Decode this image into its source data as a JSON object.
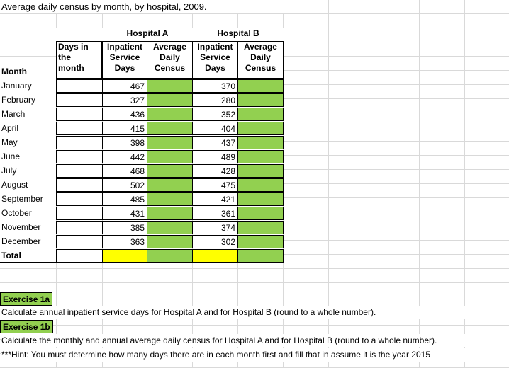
{
  "title": "Average daily census by month, by hospital, 2009.",
  "headers": {
    "hospital_a": "Hospital A",
    "hospital_b": "Hospital B",
    "days_in": "Days in",
    "the": "the",
    "month_lower": "month",
    "inpatient": "Inpatient",
    "service": "Service",
    "days": "Days",
    "average": "Average",
    "daily": "Daily",
    "census": "Census",
    "month": "Month"
  },
  "rows": [
    {
      "month": "January",
      "a_days": "467",
      "b_days": "370"
    },
    {
      "month": "February",
      "a_days": "327",
      "b_days": "280"
    },
    {
      "month": "March",
      "a_days": "436",
      "b_days": "352"
    },
    {
      "month": "April",
      "a_days": "415",
      "b_days": "404"
    },
    {
      "month": "May",
      "a_days": "398",
      "b_days": "437"
    },
    {
      "month": "June",
      "a_days": "442",
      "b_days": "489"
    },
    {
      "month": "July",
      "a_days": "468",
      "b_days": "428"
    },
    {
      "month": "August",
      "a_days": "502",
      "b_days": "475"
    },
    {
      "month": "September",
      "a_days": "485",
      "b_days": "421"
    },
    {
      "month": "October",
      "a_days": "431",
      "b_days": "361"
    },
    {
      "month": "November",
      "a_days": "385",
      "b_days": "374"
    },
    {
      "month": "December",
      "a_days": "363",
      "b_days": "302"
    }
  ],
  "total_label": "Total",
  "exercise1a": {
    "label": "Exercise 1a",
    "text": "Calculate annual inpatient service days for Hospital A and for Hospital B (round to a whole number)."
  },
  "exercise1b": {
    "label": "Exercise 1b",
    "text": "Calculate the monthly and annual average daily census for Hospital A and for Hospital B (round to a whole number).",
    "hint": "***Hint:  You must determine how many days there are in each month first and fill that in assume it is the year 2015"
  },
  "colors": {
    "green_fill": "#92d050",
    "yellow_fill": "#ffff00",
    "gridline": "#d9d9d9"
  }
}
